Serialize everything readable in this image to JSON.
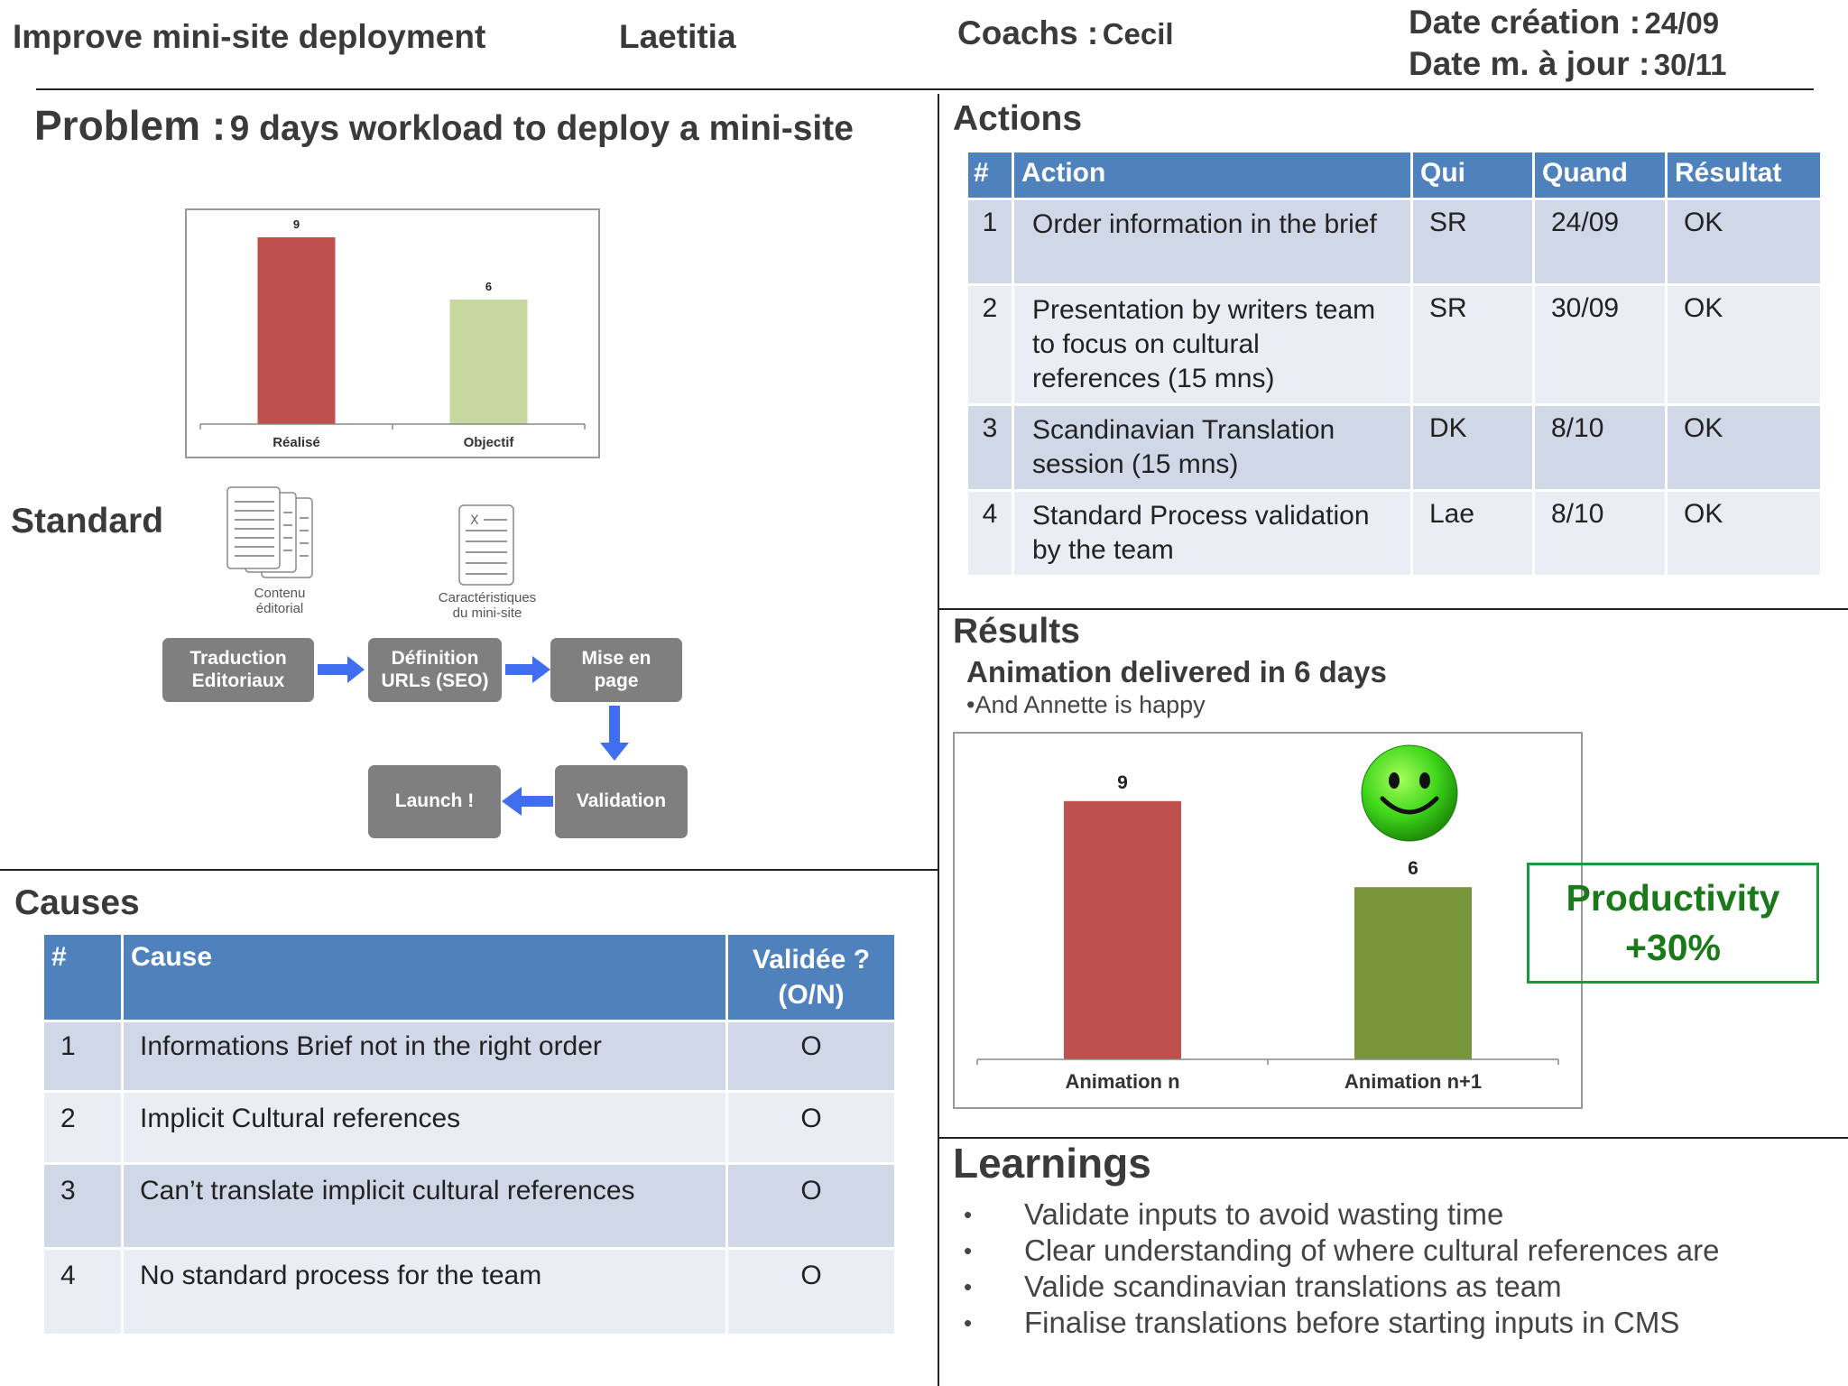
{
  "header": {
    "title": "Improve mini-site deployment",
    "owner": "Laetitia",
    "coach_label": "Coachs :",
    "coach_name": "Cecil",
    "created_label": "Date création :",
    "created_value": "24/09",
    "updated_label": "Date m. à jour :",
    "updated_value": "30/11"
  },
  "problem": {
    "label": "Problem :",
    "text": "9 days workload to deploy a mini-site"
  },
  "chart_data": [
    {
      "type": "bar",
      "categories": [
        "Réalisé",
        "Objectif"
      ],
      "values": [
        9,
        6
      ],
      "colors": [
        "#c0504d",
        "#c6d7a0"
      ],
      "ylim": [
        0,
        10
      ],
      "title": "",
      "xlabel": "",
      "ylabel": ""
    },
    {
      "type": "bar",
      "categories": [
        "Animation n",
        "Animation n+1"
      ],
      "values": [
        9,
        6
      ],
      "colors": [
        "#c0504d",
        "#77963b"
      ],
      "ylim": [
        0,
        10
      ],
      "title": "",
      "xlabel": "",
      "ylabel": ""
    }
  ],
  "standard": {
    "label": "Standard",
    "doc1_label_line1": "Contenu",
    "doc1_label_line2": "éditorial",
    "doc2_mark": "X",
    "doc2_label_line1": "Caractéristiques",
    "doc2_label_line2": "du mini-site",
    "steps": {
      "s1_line1": "Traduction",
      "s1_line2": "Editoriaux",
      "s2_line1": "Définition",
      "s2_line2": "URLs (SEO)",
      "s3_line1": "Mise en",
      "s3_line2": "page",
      "s4": "Validation",
      "s5": "Launch !"
    }
  },
  "causes": {
    "title": "Causes",
    "headers": {
      "num": "#",
      "cause": "Cause",
      "valid_line1": "Validée ?",
      "valid_line2": "(O/N)"
    },
    "rows": [
      {
        "num": "1",
        "cause": "Informations Brief not in the right order",
        "valid": "O"
      },
      {
        "num": "2",
        "cause": "Implicit Cultural references",
        "valid": "O"
      },
      {
        "num": "3",
        "cause": "Can’t translate implicit cultural references",
        "valid": "O"
      },
      {
        "num": "4",
        "cause": "No standard process for the team",
        "valid": "O"
      }
    ]
  },
  "actions": {
    "title": "Actions",
    "headers": {
      "num": "#",
      "action": "Action",
      "who": "Qui",
      "when": "Quand",
      "result": "Résultat"
    },
    "rows": [
      {
        "num": "1",
        "l1": "Order information in the brief",
        "l2": "",
        "l3": "",
        "who": "SR",
        "when": "24/09",
        "result": "OK"
      },
      {
        "num": "2",
        "l1": "Presentation by writers team",
        "l2": "to focus on cultural",
        "l3": "references (15 mns)",
        "who": "SR",
        "when": "30/09",
        "result": "OK"
      },
      {
        "num": "3",
        "l1": "Scandinavian Translation",
        "l2": "session (15 mns)",
        "l3": "",
        "who": "DK",
        "when": "8/10",
        "result": "OK"
      },
      {
        "num": "4",
        "l1": "Standard Process validation",
        "l2": "by the team",
        "l3": "",
        "who": "Lae",
        "when": "8/10",
        "result": "OK"
      }
    ]
  },
  "results": {
    "title": "Résults",
    "headline": "Animation delivered in 6 days",
    "sub": "•And Annette is happy",
    "productivity_line1": "Productivity",
    "productivity_line2": "+30%",
    "productivity_color": "#1a7a1a",
    "smiley_icon": "smiley-icon"
  },
  "learnings": {
    "title": "Learnings",
    "items": [
      "Validate inputs to avoid wasting time",
      "Clear understanding of where cultural references are",
      "Valide scandinavian translations as team",
      "Finalise translations before starting inputs in CMS"
    ]
  }
}
